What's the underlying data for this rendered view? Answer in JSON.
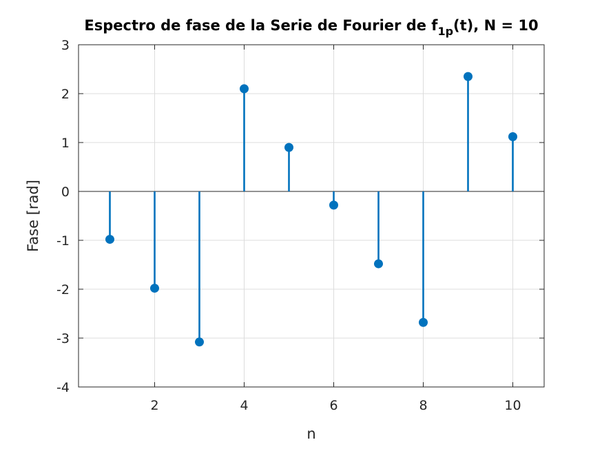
{
  "chart_data": {
    "type": "stem",
    "title": "Espectro de fase de la Serie de Fourier de f",
    "title_sub": "1p",
    "title_tail": "(t), N = 10",
    "xlabel": "n",
    "ylabel": "Fase [rad]",
    "xlim": [
      0.3,
      10.7
    ],
    "ylim": [
      -4,
      3
    ],
    "xticks": [
      2,
      4,
      6,
      8,
      10
    ],
    "yticks": [
      -4,
      -3,
      -2,
      -1,
      0,
      1,
      2,
      3
    ],
    "grid": true,
    "series": [
      {
        "color": "#0072BD",
        "x": [
          1,
          2,
          3,
          4,
          5,
          6,
          7,
          8,
          9,
          10
        ],
        "y": [
          -0.98,
          -1.98,
          -3.08,
          2.1,
          0.9,
          -0.28,
          -1.48,
          -2.68,
          2.35,
          1.12
        ]
      }
    ]
  }
}
